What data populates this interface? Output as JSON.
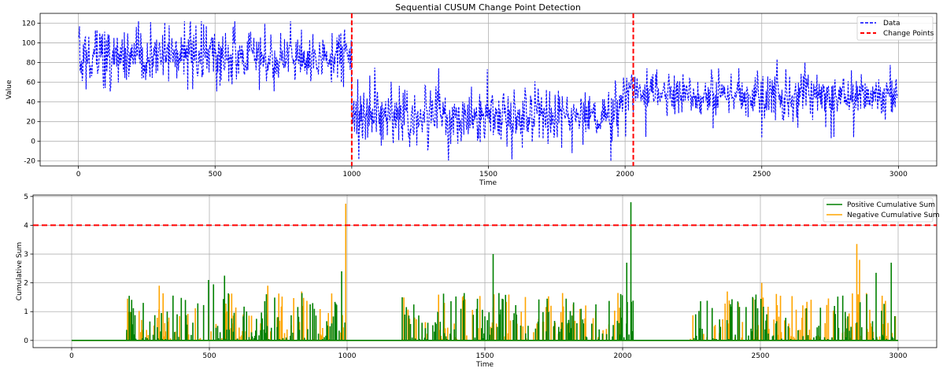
{
  "chart_data": [
    {
      "type": "line",
      "title": "Sequential CUSUM Change Point Detection",
      "xlabel": "Time",
      "ylabel": "Value",
      "xlim": [
        -140,
        3140
      ],
      "ylim": [
        -25,
        130
      ],
      "xticks": [
        0,
        500,
        1000,
        1500,
        2000,
        2500,
        3000
      ],
      "yticks": [
        -20,
        0,
        20,
        40,
        60,
        80,
        100,
        120
      ],
      "grid": true,
      "legend_position": "top-right",
      "series": [
        {
          "name": "Data",
          "style": "dashed",
          "color": "#0000ff",
          "segments": [
            {
              "x_start": 0,
              "x_end": 999,
              "mean": 87,
              "noise": 13,
              "min": 50,
              "max": 122
            },
            {
              "x_start": 1000,
              "x_end": 1979,
              "mean": 25,
              "noise": 15,
              "min": -20,
              "max": 77
            },
            {
              "x_start": 1980,
              "x_end": 2999,
              "mean": 47,
              "noise": 12,
              "min": 2,
              "max": 86
            }
          ]
        }
      ],
      "change_points": {
        "name": "Change Points",
        "color": "#ff0000",
        "style": "dashed",
        "x": [
          1000,
          2030
        ]
      }
    },
    {
      "type": "line",
      "title": "",
      "xlabel": "Time",
      "ylabel": "Cumulative Sum",
      "xlim": [
        -140,
        3140
      ],
      "ylim": [
        -0.25,
        5.05
      ],
      "xticks": [
        0,
        500,
        1000,
        1500,
        2000,
        2500,
        3000
      ],
      "yticks": [
        0,
        1,
        2,
        3,
        4,
        5
      ],
      "grid": true,
      "legend_position": "top-right",
      "threshold": {
        "y": 4,
        "color": "#ff0000",
        "style": "dashed"
      },
      "series": [
        {
          "name": "Positive Cumulative Sum",
          "color": "#008000",
          "active_ranges": [
            [
              200,
              1000
            ],
            [
              1200,
              1580
            ],
            [
              1600,
              2040
            ],
            [
              2250,
              2990
            ]
          ],
          "peaks": [
            [
              209,
              1.55
            ],
            [
              497,
              2.1
            ],
            [
              515,
              1.95
            ],
            [
              555,
              2.25
            ],
            [
              980,
              2.4
            ],
            [
              1200,
              1.5
            ],
            [
              1530,
              3.0
            ],
            [
              2015,
              2.7
            ],
            [
              2030,
              4.8
            ],
            [
              2920,
              2.35
            ],
            [
              2975,
              2.7
            ]
          ]
        },
        {
          "name": "Negative Cumulative Sum",
          "color": "#ffa500",
          "active_ranges": [
            [
              200,
              1000
            ],
            [
              1200,
              2000
            ],
            [
              2240,
              2990
            ]
          ],
          "peaks": [
            [
              203,
              1.45
            ],
            [
              318,
              1.9
            ],
            [
              712,
              1.9
            ],
            [
              835,
              1.7
            ],
            [
              995,
              4.75
            ],
            [
              1530,
              1.15
            ],
            [
              2380,
              1.7
            ],
            [
              2505,
              2.0
            ],
            [
              2850,
              3.35
            ],
            [
              2860,
              2.8
            ]
          ]
        }
      ]
    }
  ]
}
